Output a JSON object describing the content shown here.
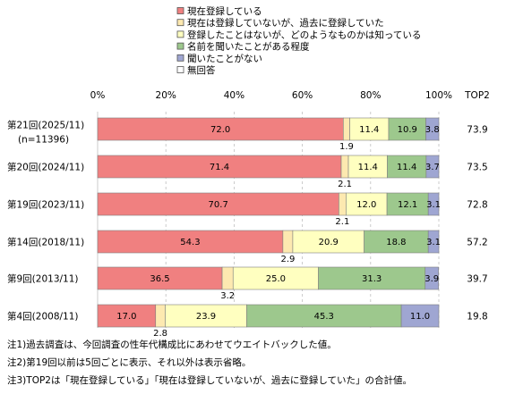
{
  "chart_data": {
    "type": "bar",
    "orientation": "horizontal",
    "stacked": true,
    "percent": true,
    "xlim": [
      0,
      100
    ],
    "x_ticks": [
      "0%",
      "20%",
      "40%",
      "60%",
      "80%",
      "100%"
    ],
    "grid": "vertical dashed",
    "legend_position": "top",
    "extra_column_header": "TOP2",
    "categories": [
      {
        "label": "第21回(2025/11)",
        "sublabel": "(n=11396)"
      },
      {
        "label": "第20回(2024/11)",
        "sublabel": ""
      },
      {
        "label": "第19回(2023/11)",
        "sublabel": ""
      },
      {
        "label": "第14回(2018/11)",
        "sublabel": ""
      },
      {
        "label": "第9回(2013/11)",
        "sublabel": ""
      },
      {
        "label": "第4回(2008/11)",
        "sublabel": ""
      }
    ],
    "series": [
      {
        "name": "現在登録している",
        "color": "#F08080",
        "values": [
          72.0,
          71.4,
          70.7,
          54.3,
          36.5,
          17.0
        ]
      },
      {
        "name": "現在は登録していないが、過去に登録していた",
        "color": "#FDE9B0",
        "values": [
          1.9,
          2.1,
          2.1,
          2.9,
          3.2,
          2.8
        ]
      },
      {
        "name": "登録したことはないが、どのようなものかは知っている",
        "color": "#FFFFC0",
        "values": [
          11.4,
          11.4,
          12.0,
          20.9,
          25.0,
          23.9
        ]
      },
      {
        "name": "名前を聞いたことがある程度",
        "color": "#9DC88D",
        "values": [
          10.9,
          11.4,
          12.1,
          18.8,
          31.3,
          45.3
        ]
      },
      {
        "name": "聞いたことがない",
        "color": "#9FA6D2",
        "values": [
          3.8,
          3.7,
          3.1,
          3.1,
          3.9,
          11.0
        ]
      },
      {
        "name": "無回答",
        "color": "#FFFFFF",
        "values": [
          0,
          0,
          0,
          0,
          0,
          0
        ]
      }
    ],
    "top2": [
      "73.9",
      "73.5",
      "72.8",
      "57.2",
      "39.7",
      "19.8"
    ],
    "notes": [
      "注1)過去調査は、今回調査の性年代構成比にあわせてウエイトバックした値。",
      "注2)第19回以前は5回ごとに表示、それ以外は表示省略。",
      "注3)TOP2は「現在登録している」「現在は登録していないが、過去に登録していた」の合計値。"
    ]
  }
}
